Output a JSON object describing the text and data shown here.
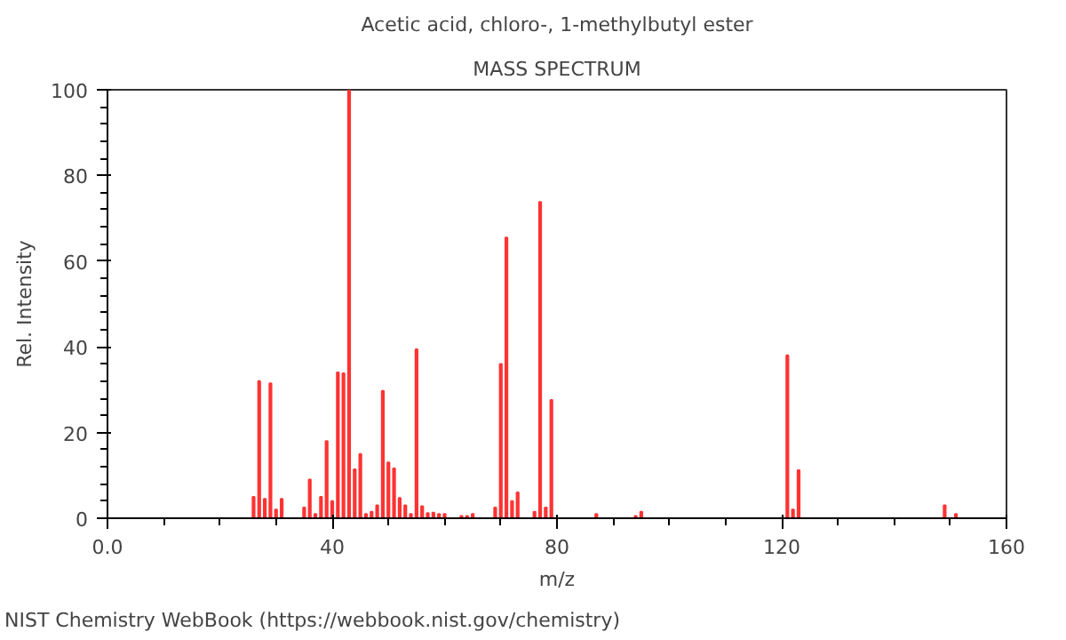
{
  "chart_data": {
    "type": "bar",
    "title": "Acetic acid, chloro-, 1-methylbutyl ester",
    "subtitle": "MASS SPECTRUM",
    "xlabel": "m/z",
    "ylabel": "Rel. Intensity",
    "x": [
      26,
      27,
      28,
      29,
      30,
      31,
      35,
      36,
      37,
      38,
      39,
      40,
      41,
      42,
      43,
      44,
      45,
      46,
      47,
      48,
      49,
      50,
      51,
      52,
      53,
      54,
      55,
      56,
      57,
      58,
      59,
      60,
      63,
      64,
      65,
      69,
      70,
      71,
      72,
      73,
      76,
      77,
      78,
      79,
      87,
      94,
      95,
      121,
      122,
      123,
      149,
      151
    ],
    "values": [
      5,
      32,
      4.5,
      31.5,
      2,
      4.5,
      2.5,
      9,
      1,
      5,
      18,
      4,
      34,
      33.8,
      100,
      11.4,
      15,
      1,
      1.5,
      3,
      29.7,
      13,
      11.6,
      4.7,
      3,
      1,
      39.4,
      2.8,
      1.2,
      1.3,
      1,
      1,
      0.5,
      0.5,
      1,
      2.5,
      36,
      65.5,
      4,
      6,
      1.5,
      73.8,
      2.5,
      27.6,
      1,
      0.5,
      1.5,
      38,
      2,
      11.2,
      3,
      1
    ],
    "color": "#ff3333",
    "xlim": [
      0,
      160
    ],
    "xticks": [
      {
        "value": 0,
        "label": "0.0"
      },
      40,
      80,
      120,
      160
    ],
    "ylim": [
      0,
      100
    ],
    "yticks": [
      0,
      20,
      40,
      60,
      80,
      100
    ],
    "grid": false,
    "annotations": [
      "NIST Chemistry WebBook (https://webbook.nist.gov/chemistry)"
    ]
  }
}
